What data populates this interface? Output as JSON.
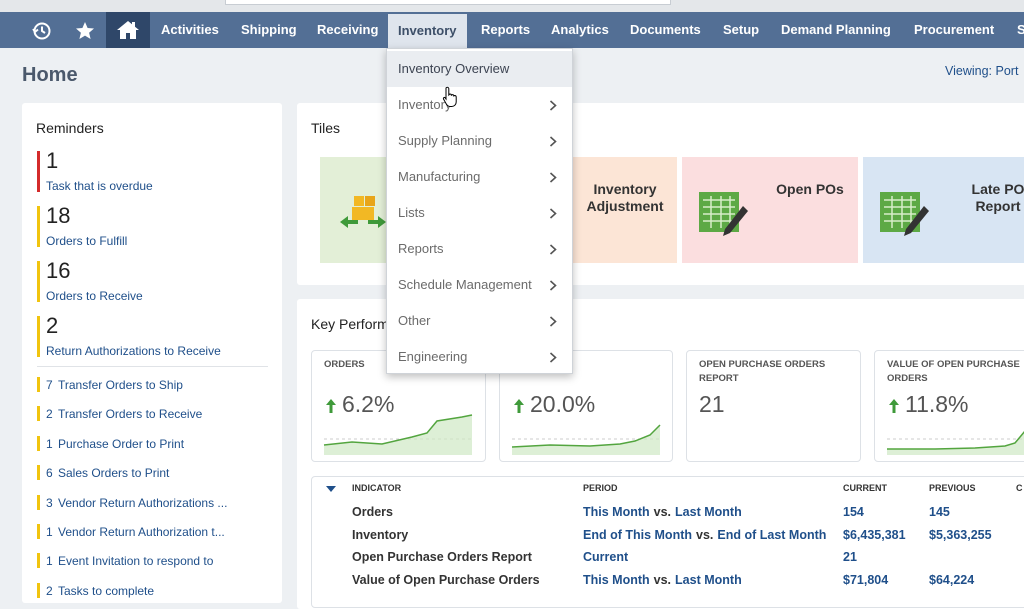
{
  "nav": {
    "items": [
      "Activities",
      "Shipping",
      "Receiving",
      "Inventory",
      "Reports",
      "Analytics",
      "Documents",
      "Setup",
      "Demand Planning",
      "Procurement",
      "S"
    ]
  },
  "header": {
    "title": "Home",
    "viewing": "Viewing: Port"
  },
  "reminders": {
    "title": "Reminders",
    "highlights": [
      {
        "count": 1,
        "label": "Task that is overdue"
      },
      {
        "count": 18,
        "label": "Orders to Fulfill"
      },
      {
        "count": 16,
        "label": "Orders to Receive"
      },
      {
        "count": 2,
        "label": "Return Authorizations to Receive"
      }
    ],
    "items": [
      {
        "count": 7,
        "label": "Transfer Orders to Ship"
      },
      {
        "count": 2,
        "label": "Transfer Orders to Receive"
      },
      {
        "count": 1,
        "label": "Purchase Order to Print"
      },
      {
        "count": 6,
        "label": "Sales Orders to Print"
      },
      {
        "count": 3,
        "label": "Vendor Return Authorizations ..."
      },
      {
        "count": 1,
        "label": "Vendor Return Authorization t..."
      },
      {
        "count": 1,
        "label": "Event Invitation to respond to"
      },
      {
        "count": 2,
        "label": "Tasks to complete"
      }
    ]
  },
  "tiles": {
    "title": "Tiles",
    "items": [
      "Inventory Adjustment",
      "Open POs",
      "Late PO Report"
    ]
  },
  "kpi": {
    "title": "Key Performance Indicators",
    "cards": [
      {
        "label": "ORDERS",
        "value": "6.2%"
      },
      {
        "value": "20.0%"
      },
      {
        "label": "OPEN PURCHASE ORDERS REPORT",
        "value": "21"
      },
      {
        "label": "VALUE OF OPEN PURCHASE ORDERS",
        "value": "11.8%"
      }
    ],
    "table": {
      "columns": [
        "INDICATOR",
        "PERIOD",
        "CURRENT",
        "PREVIOUS",
        "C"
      ],
      "rows": [
        {
          "indicator": "Orders",
          "period": [
            "This Month",
            "vs.",
            "Last Month"
          ],
          "current": "154",
          "previous": "145"
        },
        {
          "indicator": "Inventory",
          "period": [
            "End of This Month",
            "vs.",
            "End of Last Month"
          ],
          "current": "$6,435,381",
          "previous": "$5,363,255"
        },
        {
          "indicator": "Open Purchase Orders Report",
          "period": [
            "Current"
          ],
          "current": "21"
        },
        {
          "indicator": "Value of Open Purchase Orders",
          "period": [
            "This Month",
            "vs.",
            "Last Month"
          ],
          "current": "$71,804",
          "previous": "$64,224"
        }
      ]
    }
  },
  "menu": {
    "items": [
      "Inventory Overview",
      "Inventory",
      "Supply Planning",
      "Manufacturing",
      "Lists",
      "Reports",
      "Schedule Management",
      "Other",
      "Engineering"
    ]
  }
}
